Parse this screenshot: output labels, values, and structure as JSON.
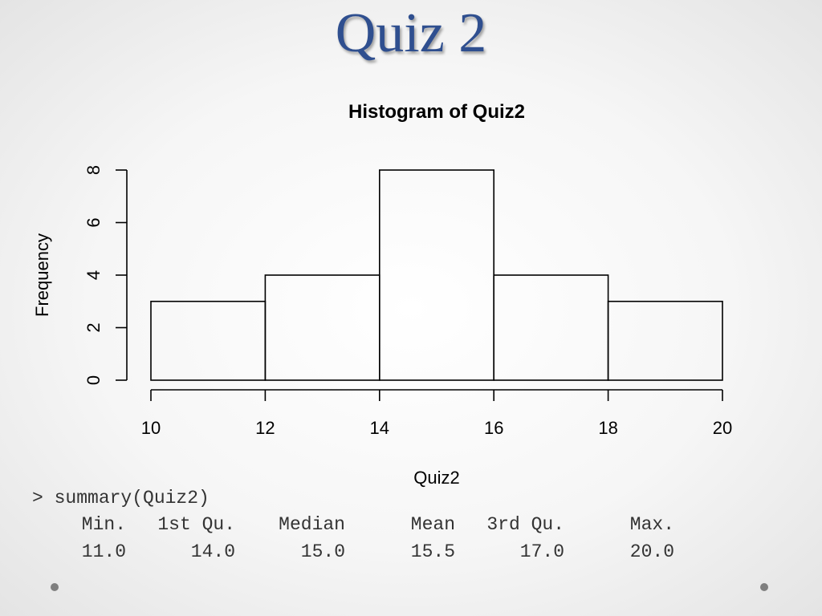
{
  "slide": {
    "title": "Quiz 2"
  },
  "chart_data": {
    "type": "bar",
    "title": "Histogram of Quiz2",
    "xlabel": "Quiz2",
    "ylabel": "Frequency",
    "bins": [
      [
        10,
        12
      ],
      [
        12,
        14
      ],
      [
        14,
        16
      ],
      [
        16,
        18
      ],
      [
        18,
        20
      ]
    ],
    "values": [
      3,
      4,
      8,
      4,
      3
    ],
    "xlim": [
      10,
      20
    ],
    "ylim": [
      0,
      8
    ],
    "xticks": [
      10,
      12,
      14,
      16,
      18,
      20
    ],
    "yticks": [
      0,
      2,
      4,
      6,
      8
    ],
    "grid": false
  },
  "console": {
    "command": "> summary(Quiz2)",
    "headers": [
      "Min.",
      "1st Qu.",
      "Median",
      "Mean",
      "3rd Qu.",
      "Max."
    ],
    "values": [
      "11.0",
      "14.0",
      "15.0",
      "15.5",
      "17.0",
      "20.0"
    ]
  }
}
